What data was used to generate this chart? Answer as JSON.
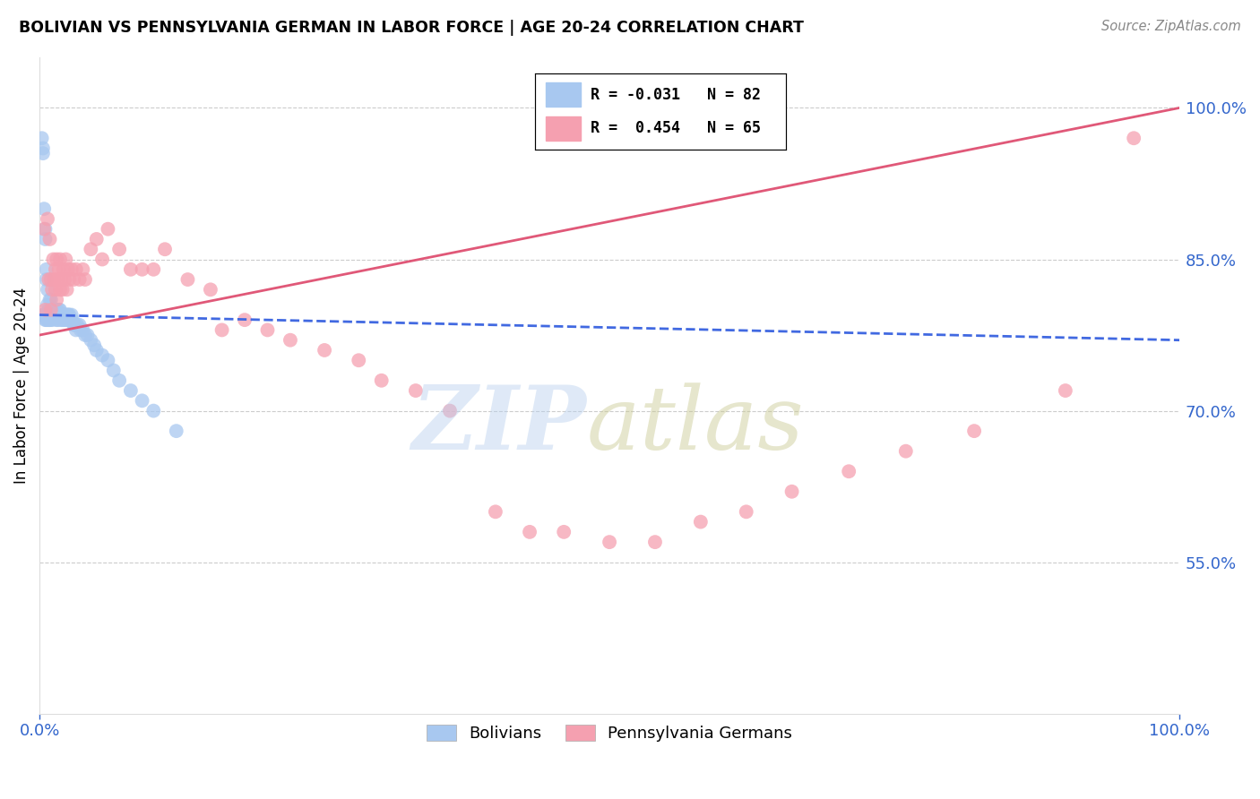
{
  "title": "BOLIVIAN VS PENNSYLVANIA GERMAN IN LABOR FORCE | AGE 20-24 CORRELATION CHART",
  "source": "Source: ZipAtlas.com",
  "ylabel": "In Labor Force | Age 20-24",
  "y_ticks": [
    0.55,
    0.7,
    0.85,
    1.0
  ],
  "y_tick_labels": [
    "55.0%",
    "70.0%",
    "85.0%",
    "100.0%"
  ],
  "x_ticks": [
    0.0,
    1.0
  ],
  "x_tick_labels": [
    "0.0%",
    "100.0%"
  ],
  "x_range": [
    0.0,
    1.0
  ],
  "y_range": [
    0.4,
    1.05
  ],
  "bolivian_color": "#A8C8F0",
  "penn_german_color": "#F5A0B0",
  "trendline_bolivian_color": "#4169E1",
  "trendline_penn_color": "#E05878",
  "legend_R_bolivian": "R = -0.031",
  "legend_N_bolivian": "N = 82",
  "legend_R_penn": "R =  0.454",
  "legend_N_penn": "N = 65",
  "bolivian_trendline": [
    0.795,
    0.77
  ],
  "penn_trendline": [
    0.775,
    1.0
  ],
  "bolivian_x": [
    0.002,
    0.003,
    0.003,
    0.004,
    0.005,
    0.005,
    0.006,
    0.006,
    0.007,
    0.007,
    0.008,
    0.008,
    0.009,
    0.009,
    0.01,
    0.01,
    0.01,
    0.011,
    0.011,
    0.012,
    0.012,
    0.013,
    0.013,
    0.014,
    0.014,
    0.015,
    0.015,
    0.015,
    0.016,
    0.016,
    0.017,
    0.017,
    0.018,
    0.018,
    0.019,
    0.019,
    0.02,
    0.02,
    0.021,
    0.021,
    0.022,
    0.022,
    0.023,
    0.024,
    0.025,
    0.025,
    0.026,
    0.027,
    0.028,
    0.029,
    0.03,
    0.031,
    0.032,
    0.033,
    0.035,
    0.036,
    0.038,
    0.04,
    0.042,
    0.045,
    0.048,
    0.05,
    0.055,
    0.06,
    0.065,
    0.07,
    0.08,
    0.09,
    0.1,
    0.12,
    0.003,
    0.004,
    0.005,
    0.006,
    0.007,
    0.008,
    0.009,
    0.01,
    0.012,
    0.015,
    0.02,
    0.025
  ],
  "bolivian_y": [
    0.97,
    0.96,
    0.955,
    0.9,
    0.88,
    0.87,
    0.84,
    0.83,
    0.82,
    0.805,
    0.8,
    0.795,
    0.81,
    0.79,
    0.8,
    0.795,
    0.81,
    0.795,
    0.79,
    0.8,
    0.795,
    0.8,
    0.795,
    0.8,
    0.795,
    0.795,
    0.79,
    0.8,
    0.795,
    0.79,
    0.8,
    0.795,
    0.8,
    0.795,
    0.795,
    0.79,
    0.795,
    0.79,
    0.795,
    0.79,
    0.795,
    0.79,
    0.795,
    0.79,
    0.795,
    0.79,
    0.795,
    0.79,
    0.795,
    0.79,
    0.785,
    0.785,
    0.78,
    0.785,
    0.785,
    0.78,
    0.78,
    0.775,
    0.775,
    0.77,
    0.765,
    0.76,
    0.755,
    0.75,
    0.74,
    0.73,
    0.72,
    0.71,
    0.7,
    0.68,
    0.795,
    0.795,
    0.79,
    0.79,
    0.79,
    0.79,
    0.79,
    0.795,
    0.795,
    0.795,
    0.795,
    0.795
  ],
  "penn_x": [
    0.004,
    0.005,
    0.007,
    0.008,
    0.009,
    0.01,
    0.01,
    0.011,
    0.012,
    0.013,
    0.014,
    0.014,
    0.015,
    0.015,
    0.016,
    0.017,
    0.018,
    0.018,
    0.019,
    0.02,
    0.021,
    0.022,
    0.023,
    0.024,
    0.025,
    0.026,
    0.028,
    0.03,
    0.032,
    0.035,
    0.038,
    0.04,
    0.045,
    0.05,
    0.055,
    0.06,
    0.07,
    0.08,
    0.09,
    0.1,
    0.11,
    0.13,
    0.15,
    0.16,
    0.18,
    0.2,
    0.22,
    0.25,
    0.28,
    0.3,
    0.33,
    0.36,
    0.4,
    0.43,
    0.46,
    0.5,
    0.54,
    0.58,
    0.62,
    0.66,
    0.71,
    0.76,
    0.82,
    0.9,
    0.96
  ],
  "penn_y": [
    0.88,
    0.8,
    0.89,
    0.83,
    0.87,
    0.83,
    0.8,
    0.82,
    0.85,
    0.83,
    0.84,
    0.82,
    0.85,
    0.81,
    0.83,
    0.84,
    0.82,
    0.85,
    0.83,
    0.82,
    0.84,
    0.83,
    0.85,
    0.82,
    0.84,
    0.83,
    0.84,
    0.83,
    0.84,
    0.83,
    0.84,
    0.83,
    0.86,
    0.87,
    0.85,
    0.88,
    0.86,
    0.84,
    0.84,
    0.84,
    0.86,
    0.83,
    0.82,
    0.78,
    0.79,
    0.78,
    0.77,
    0.76,
    0.75,
    0.73,
    0.72,
    0.7,
    0.6,
    0.58,
    0.58,
    0.57,
    0.57,
    0.59,
    0.6,
    0.62,
    0.64,
    0.66,
    0.68,
    0.72,
    0.97
  ]
}
